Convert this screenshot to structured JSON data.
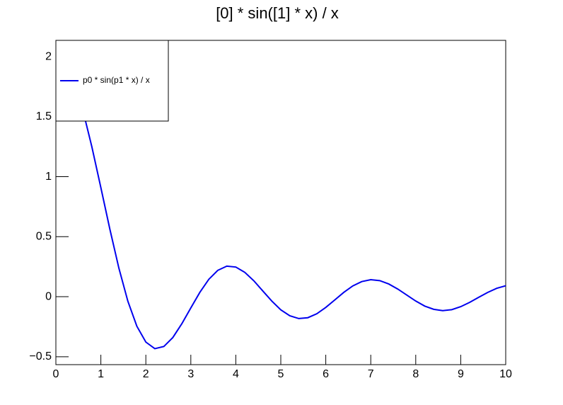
{
  "chart_data": {
    "type": "line",
    "title": "[0] * sin([1] * x) / x",
    "x": [
      0.2,
      0.4,
      0.6,
      0.8,
      1.0,
      1.2,
      1.4,
      1.6,
      1.8,
      2.0,
      2.2,
      2.4,
      2.6,
      2.8,
      3.0,
      3.2,
      3.4,
      3.6,
      3.8,
      4.0,
      4.2,
      4.4,
      4.6,
      4.8,
      5.0,
      5.2,
      5.4,
      5.6,
      5.8,
      6.0,
      6.2,
      6.4,
      6.6,
      6.8,
      7.0,
      7.2,
      7.4,
      7.6,
      7.8,
      8.0,
      8.2,
      8.4,
      8.6,
      8.8,
      9.0,
      9.2,
      9.4,
      9.6,
      9.8,
      10.0
    ],
    "series": [
      {
        "name": "p0 * sin(p1 * x) / x",
        "color": "#0000ee",
        "values": [
          1.947,
          1.793,
          1.553,
          1.249,
          0.909,
          0.563,
          0.239,
          -0.037,
          -0.246,
          -0.378,
          -0.433,
          -0.415,
          -0.34,
          -0.225,
          -0.093,
          0.036,
          0.145,
          0.22,
          0.255,
          0.247,
          0.203,
          0.133,
          0.048,
          -0.036,
          -0.109,
          -0.159,
          -0.182,
          -0.175,
          -0.142,
          -0.089,
          -0.027,
          0.036,
          0.09,
          0.126,
          0.142,
          0.134,
          0.106,
          0.064,
          0.014,
          -0.036,
          -0.078,
          -0.105,
          -0.116,
          -0.108,
          -0.083,
          -0.047,
          -0.005,
          0.036,
          0.07,
          0.0913
        ]
      }
    ],
    "xlim": [
      0,
      10
    ],
    "xticks": [
      0,
      1,
      2,
      3,
      4,
      5,
      6,
      7,
      8,
      9,
      10
    ],
    "ylim": [
      -0.566,
      2.136
    ],
    "yticks": [
      {
        "value": -0.5,
        "label": "−0.5"
      },
      0,
      0.5,
      1,
      1.5,
      2
    ],
    "legend": "top-left"
  }
}
